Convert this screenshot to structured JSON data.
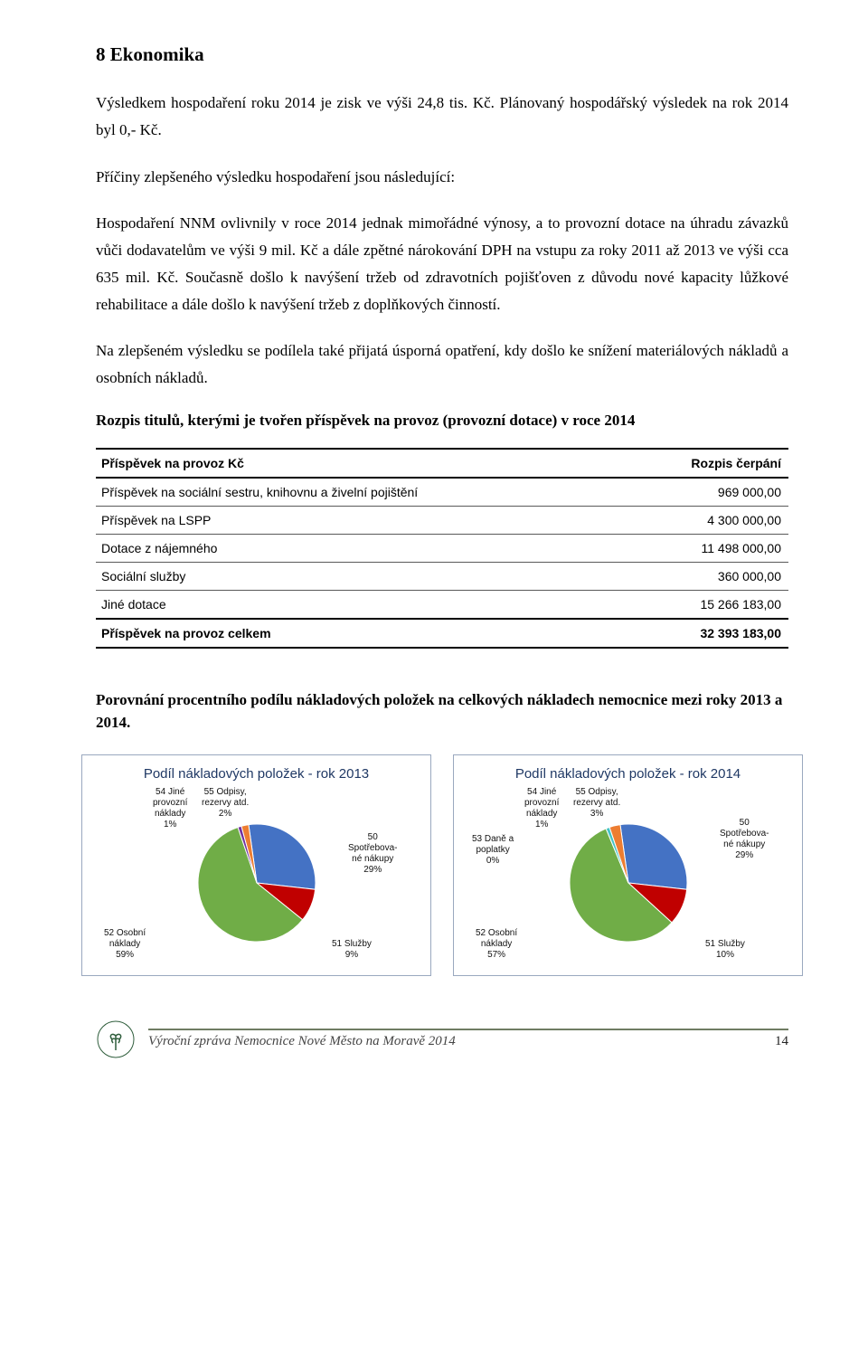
{
  "section_number_title": "8   Ekonomika",
  "para1": "Výsledkem hospodaření roku 2014 je zisk ve výši 24,8 tis. Kč. Plánovaný hospodářský výsledek na rok 2014 byl 0,- Kč.",
  "para2": "Příčiny zlepšeného výsledku hospodaření jsou následující:",
  "para3": "Hospodaření NNM ovlivnily v roce 2014 jednak mimořádné výnosy, a to provozní dotace na úhradu závazků vůči dodavatelům ve výši 9 mil. Kč a dále zpětné nárokování DPH na vstupu za roky 2011 až 2013 ve výši cca 635 mil. Kč. Současně došlo k navýšení tržeb od zdravotních pojišťoven z důvodu nové kapacity lůžkové rehabilitace a dále došlo k navýšení tržeb z doplňkových činností.",
  "para4": "Na zlepšeném výsledku se podílela také přijatá úsporná opatření, kdy došlo ke snížení materiálových nákladů a osobních nákladů.",
  "table_heading": "Rozpis titulů, kterými je tvořen příspěvek na provoz (provozní dotace) v roce 2014",
  "table": {
    "col1": "Příspěvek na provoz  Kč",
    "col2": "Rozpis čerpání",
    "rows": [
      {
        "label": "Příspěvek na sociální sestru, knihovnu a živelní pojištění",
        "value": "969 000,00"
      },
      {
        "label": "Příspěvek na LSPP",
        "value": "4 300 000,00"
      },
      {
        "label": "Dotace z nájemného",
        "value": "11 498 000,00"
      },
      {
        "label": "Sociální služby",
        "value": "360 000,00"
      },
      {
        "label": "Jiné dotace",
        "value": "15 266 183,00"
      }
    ],
    "total_label": "Příspěvek na provoz celkem",
    "total_value": "32 393 183,00"
  },
  "compare_heading": "Porovnání procentního podílu nákladových položek na celkových nákladech nemocnice mezi roky 2013 a 2014.",
  "chart_left": {
    "title": "Podíl nákladových položek - rok 2013",
    "type": "pie",
    "slices": [
      {
        "name": "50 Spotřebované nákupy",
        "pct": 29,
        "color": "#4472c4"
      },
      {
        "name": "51 Služby",
        "pct": 9,
        "color": "#c00000"
      },
      {
        "name": "52 Osobní náklady",
        "pct": 59,
        "color": "#70ad47"
      },
      {
        "name": "54 Jiné provozní náklady",
        "pct": 1,
        "color": "#7030a0"
      },
      {
        "name": "55 Odpisy, rezervy atd.",
        "pct": 2,
        "color": "#ed7d31"
      }
    ],
    "labels": {
      "l50a": "50",
      "l50b": "Spotřebova-",
      "l50c": "né nákupy",
      "l50d": "29%",
      "l51a": "51 Služby",
      "l51b": "9%",
      "l52a": "52 Osobní",
      "l52b": "náklady",
      "l52c": "59%",
      "l54a": "54 Jiné",
      "l54b": "provozní",
      "l54c": "náklady",
      "l54d": "1%",
      "l55a": "55 Odpisy,",
      "l55b": "rezervy atd.",
      "l55c": "2%"
    }
  },
  "chart_right": {
    "title": "Podíl nákladových položek - rok 2014",
    "type": "pie",
    "slices": [
      {
        "name": "50 Spotřebované nákupy",
        "pct": 29,
        "color": "#4472c4"
      },
      {
        "name": "51 Služby",
        "pct": 10,
        "color": "#c00000"
      },
      {
        "name": "52 Osobní náklady",
        "pct": 57,
        "color": "#70ad47"
      },
      {
        "name": "53 Daně a poplatky",
        "pct": 0,
        "color": "#7030a0"
      },
      {
        "name": "54 Jiné provozní náklady",
        "pct": 1,
        "color": "#44c2c4"
      },
      {
        "name": "55 Odpisy, rezervy atd.",
        "pct": 3,
        "color": "#ed7d31"
      }
    ],
    "labels": {
      "l50a": "50",
      "l50b": "Spotřebova-",
      "l50c": "né nákupy",
      "l50d": "29%",
      "l51a": "51 Služby",
      "l51b": "10%",
      "l52a": "52 Osobní",
      "l52b": "náklady",
      "l52c": "57%",
      "l53a": "53 Daně a",
      "l53b": "poplatky",
      "l53c": "0%",
      "l54a": "54 Jiné",
      "l54b": "provozní",
      "l54c": "náklady",
      "l54d": "1%",
      "l55a": "55 Odpisy,",
      "l55b": "rezervy atd.",
      "l55c": "3%"
    }
  },
  "footer_text": "Výroční zpráva Nemocnice Nové Město na Moravě 2014",
  "page_number": "14"
}
